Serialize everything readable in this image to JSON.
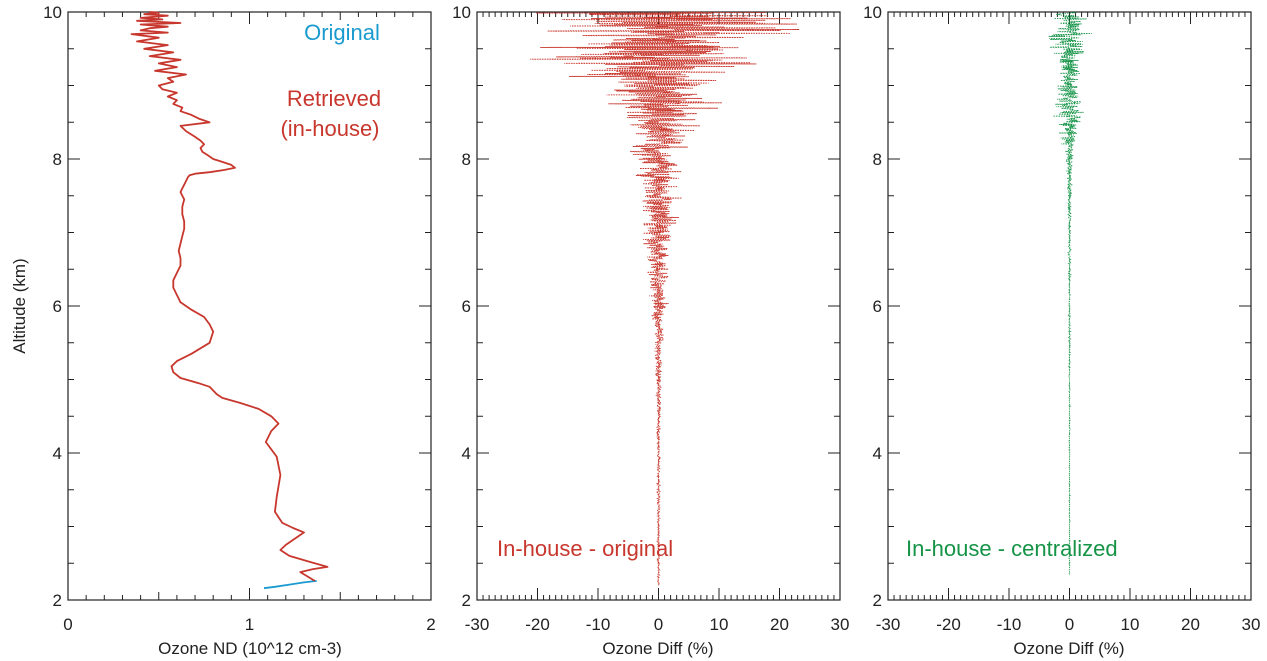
{
  "colors": {
    "original": "#1a9bd0",
    "retrieved": "#c8372d",
    "centralized": "#159447",
    "axis": "#222222"
  },
  "chart_data": [
    {
      "type": "line",
      "xlabel": "Ozone ND (10^12 cm-3)",
      "ylabel": "Altitude (km)",
      "xlim": [
        0,
        2
      ],
      "ylim": [
        2,
        10
      ],
      "xticks": [
        "0",
        "1",
        "2"
      ],
      "yticks": [
        "2",
        "4",
        "6",
        "8",
        "10"
      ],
      "annotations": [
        "Original",
        "Retrieved",
        "(in-house)"
      ],
      "series": [
        {
          "name": "Original",
          "color": "#1a9bd0",
          "x": [
            1.08,
            1.14,
            1.22,
            1.3,
            1.37
          ],
          "y": [
            2.16,
            2.18,
            2.21,
            2.24,
            2.26
          ]
        },
        {
          "name": "Retrieved (in-house)",
          "color": "#c8372d",
          "x": [
            1.36,
            1.32,
            1.28,
            1.35,
            1.43,
            1.33,
            1.22,
            1.17,
            1.2,
            1.3,
            1.24,
            1.18,
            1.14,
            1.15,
            1.17,
            1.15,
            1.09,
            1.12,
            1.16,
            1.12,
            1.05,
            0.95,
            0.85,
            0.82,
            0.8,
            0.78,
            0.72,
            0.62,
            0.58,
            0.57,
            0.6,
            0.68,
            0.78,
            0.8,
            0.78,
            0.75,
            0.68,
            0.62,
            0.6,
            0.58,
            0.58,
            0.6,
            0.62,
            0.62,
            0.61,
            0.62,
            0.63,
            0.64,
            0.64,
            0.63,
            0.63,
            0.64,
            0.62,
            0.63,
            0.64,
            0.65,
            0.66,
            0.67,
            0.7,
            0.78,
            0.86,
            0.92,
            0.9,
            0.85,
            0.8,
            0.77,
            0.74,
            0.73,
            0.75,
            0.73,
            0.7,
            0.65,
            0.62,
            0.78,
            0.72,
            0.68,
            0.62,
            0.63,
            0.58,
            0.6,
            0.55,
            0.6,
            0.52,
            0.5,
            0.58,
            0.55,
            0.65,
            0.48,
            0.6,
            0.5,
            0.62,
            0.45,
            0.58,
            0.42,
            0.55,
            0.38,
            0.5,
            0.35,
            0.55,
            0.4,
            0.45,
            0.55,
            0.4,
            0.62,
            0.38,
            0.52,
            0.4,
            0.55,
            0.42,
            0.5,
            0.45
          ],
          "y": [
            2.26,
            2.32,
            2.38,
            2.42,
            2.45,
            2.52,
            2.6,
            2.68,
            2.75,
            2.92,
            2.98,
            3.05,
            3.2,
            3.4,
            3.7,
            3.95,
            4.15,
            4.3,
            4.4,
            4.5,
            4.6,
            4.68,
            4.75,
            4.8,
            4.85,
            4.9,
            4.95,
            5.02,
            5.1,
            5.18,
            5.25,
            5.35,
            5.5,
            5.65,
            5.75,
            5.85,
            5.95,
            6.05,
            6.15,
            6.25,
            6.35,
            6.45,
            6.55,
            6.65,
            6.75,
            6.85,
            6.95,
            7.05,
            7.15,
            7.25,
            7.35,
            7.45,
            7.55,
            7.6,
            7.65,
            7.7,
            7.75,
            7.78,
            7.8,
            7.82,
            7.85,
            7.88,
            7.92,
            7.96,
            8.0,
            8.05,
            8.1,
            8.15,
            8.2,
            8.25,
            8.3,
            8.38,
            8.45,
            8.5,
            8.55,
            8.6,
            8.65,
            8.7,
            8.75,
            8.8,
            8.85,
            8.9,
            8.95,
            9.0,
            9.05,
            9.1,
            9.15,
            9.2,
            9.25,
            9.3,
            9.35,
            9.4,
            9.45,
            9.5,
            9.55,
            9.6,
            9.65,
            9.7,
            9.72,
            9.75,
            9.78,
            9.8,
            9.83,
            9.85,
            9.88,
            9.9,
            9.92,
            9.95,
            9.97,
            9.99,
            10.0
          ]
        }
      ]
    },
    {
      "type": "scatter",
      "xlabel": "Ozone Diff (%)",
      "xlim": [
        -30,
        30
      ],
      "ylim": [
        2,
        10
      ],
      "xticks": [
        "-30",
        "-20",
        "-10",
        "0",
        "10",
        "20",
        "30"
      ],
      "yticks": [
        "2",
        "4",
        "6",
        "8",
        "10"
      ],
      "annotation": "In-house - original",
      "series": [
        {
          "name": "In-house - original",
          "color": "#c8372d",
          "spread": {
            "altitude_km": [
              2.2,
              4.0,
              5.0,
              5.5,
              6.0,
              6.5,
              7.0,
              7.5,
              8.0,
              8.5,
              9.0,
              9.3,
              9.6,
              9.8,
              10.0
            ],
            "half_width_pct": [
              0.2,
              0.3,
              0.6,
              1.0,
              1.8,
              2.5,
              3.5,
              4.5,
              6.0,
              9.0,
              14.0,
              22.0,
              28.0,
              30.0,
              30.0
            ]
          }
        }
      ]
    },
    {
      "type": "scatter",
      "xlabel": "Ozone Diff (%)",
      "xlim": [
        -30,
        30
      ],
      "ylim": [
        2,
        10
      ],
      "xticks": [
        "-30",
        "-20",
        "-10",
        "0",
        "10",
        "20",
        "30"
      ],
      "yticks": [
        "2",
        "4",
        "6",
        "8",
        "10"
      ],
      "annotation": "In-house - centralized",
      "series": [
        {
          "name": "In-house - centralized",
          "color": "#159447",
          "spread": {
            "altitude_km": [
              2.35,
              4.0,
              6.0,
              7.0,
              7.5,
              8.0,
              8.5,
              8.7,
              9.0,
              9.3,
              9.6,
              10.0
            ],
            "half_width_pct": [
              0.1,
              0.1,
              0.2,
              0.3,
              0.5,
              0.8,
              2.5,
              4.0,
              2.5,
              2.5,
              5.0,
              3.0
            ]
          }
        }
      ]
    }
  ]
}
